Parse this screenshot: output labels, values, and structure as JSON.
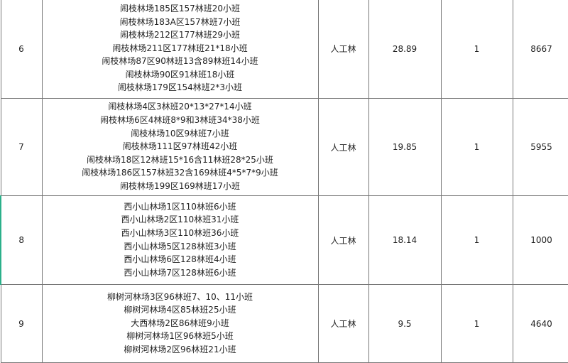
{
  "rows": [
    {
      "no": "6",
      "locations": [
        "闹枝林场185区157林班20小班",
        "闹枝林场183A区157林班7小班",
        "闹枝林场212区177林班29小班",
        "闹枝林场211区177林班21*18小班",
        "闹枝林场87区90林班13含89林班14小班",
        "闹枝林场90区91林班18小班",
        "闹枝林场179区154林班2*3小班"
      ],
      "type": "人工林",
      "area": "28.89",
      "count": "1",
      "value": "8667"
    },
    {
      "no": "7",
      "locations": [
        "闹枝林场4区3林班20*13*27*14小班",
        "闹枝林场6区4林班8*9和3林班34*38小班",
        "闹枝林场10区9林班7小班",
        "闹枝林场111区97林班42小班",
        "闹枝林场18区12林班15*16含11林班28*25小班",
        "闹枝林场186区157林班32含169林班4*5*7*9小班",
        "闹枝林场199区169林班17小班"
      ],
      "type": "人工林",
      "area": "19.85",
      "count": "1",
      "value": "5955"
    },
    {
      "no": "8",
      "locations": [
        "西小山林场1区110林班6小班",
        "西小山林场2区110林班31小班",
        "西小山林场3区110林班36小班",
        "西小山林场5区128林班3小班",
        "西小山林场6区128林班4小班",
        "西小山林场7区128林班6小班"
      ],
      "type": "人工林",
      "area": "18.14",
      "count": "1",
      "value": "1000"
    },
    {
      "no": "9",
      "locations": [
        "柳树河林场3区96林班7、10、11小班",
        "柳树河林场4区85林班25小班",
        "大西林场2区86林班9小班",
        "柳树河林场1区96林班5小班",
        "柳树河林场2区96林班21小班"
      ],
      "type": "人工林",
      "area": "9.5",
      "count": "1",
      "value": "4640"
    }
  ]
}
